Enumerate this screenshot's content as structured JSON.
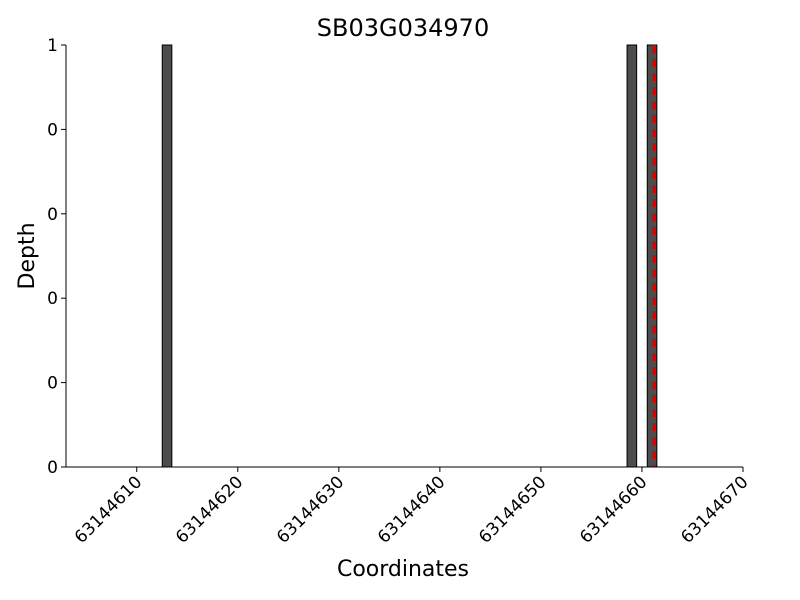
{
  "chart_data": {
    "type": "bar",
    "title": "SB03G034970",
    "xlabel": "Coordinates",
    "ylabel": "Depth",
    "xlim": [
      63144603,
      63144670
    ],
    "ylim": [
      0,
      1
    ],
    "x_ticks": [
      63144610,
      63144620,
      63144630,
      63144640,
      63144650,
      63144660,
      63144670
    ],
    "y_ticks": [
      {
        "value": 0,
        "label": "0"
      },
      {
        "value": 0.2,
        "label": "0"
      },
      {
        "value": 0.4,
        "label": "0"
      },
      {
        "value": 0.6,
        "label": "0"
      },
      {
        "value": 0.8,
        "label": "0"
      },
      {
        "value": 1,
        "label": "1"
      }
    ],
    "bars": [
      {
        "x": 63144613,
        "value": 1
      },
      {
        "x": 63144659,
        "value": 1
      },
      {
        "x": 63144661,
        "value": 1
      }
    ],
    "marker_line": {
      "x": 63144661.2,
      "color": "#dd0000",
      "style": "dashed"
    },
    "bar_color": "#4d4d4d",
    "grid": false
  }
}
